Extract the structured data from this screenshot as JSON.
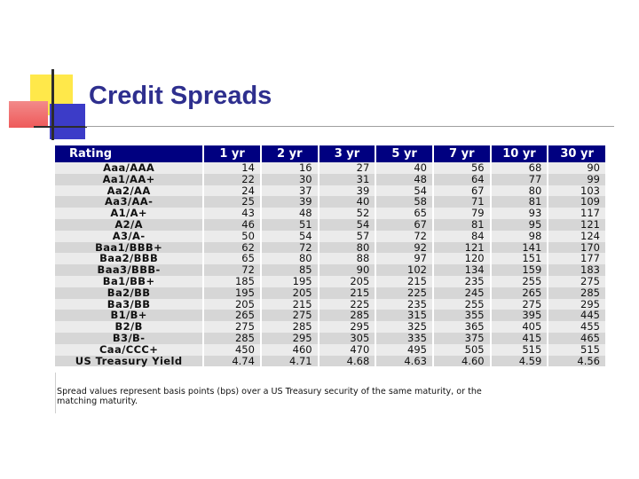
{
  "slide": {
    "title": "Credit Spreads"
  },
  "table": {
    "headers": [
      "Rating",
      "1 yr",
      "2 yr",
      "3 yr",
      "5 yr",
      "7 yr",
      "10 yr",
      "30 yr"
    ],
    "rows": [
      [
        "Aaa/AAA",
        "14",
        "16",
        "27",
        "40",
        "56",
        "68",
        "90"
      ],
      [
        "Aa1/AA+",
        "22",
        "30",
        "31",
        "48",
        "64",
        "77",
        "99"
      ],
      [
        "Aa2/AA",
        "24",
        "37",
        "39",
        "54",
        "67",
        "80",
        "103"
      ],
      [
        "Aa3/AA-",
        "25",
        "39",
        "40",
        "58",
        "71",
        "81",
        "109"
      ],
      [
        "A1/A+",
        "43",
        "48",
        "52",
        "65",
        "79",
        "93",
        "117"
      ],
      [
        "A2/A",
        "46",
        "51",
        "54",
        "67",
        "81",
        "95",
        "121"
      ],
      [
        "A3/A-",
        "50",
        "54",
        "57",
        "72",
        "84",
        "98",
        "124"
      ],
      [
        "Baa1/BBB+",
        "62",
        "72",
        "80",
        "92",
        "121",
        "141",
        "170"
      ],
      [
        "Baa2/BBB",
        "65",
        "80",
        "88",
        "97",
        "120",
        "151",
        "177"
      ],
      [
        "Baa3/BBB-",
        "72",
        "85",
        "90",
        "102",
        "134",
        "159",
        "183"
      ],
      [
        "Ba1/BB+",
        "185",
        "195",
        "205",
        "215",
        "235",
        "255",
        "275"
      ],
      [
        "Ba2/BB",
        "195",
        "205",
        "215",
        "225",
        "245",
        "265",
        "285"
      ],
      [
        "Ba3/BB",
        "205",
        "215",
        "225",
        "235",
        "255",
        "275",
        "295"
      ],
      [
        "B1/B+",
        "265",
        "275",
        "285",
        "315",
        "355",
        "395",
        "445"
      ],
      [
        "B2/B",
        "275",
        "285",
        "295",
        "325",
        "365",
        "405",
        "455"
      ],
      [
        "B3/B-",
        "285",
        "295",
        "305",
        "335",
        "375",
        "415",
        "465"
      ],
      [
        "Caa/CCC+",
        "450",
        "460",
        "470",
        "495",
        "505",
        "515",
        "515"
      ],
      [
        "US Treasury Yield",
        "4.74",
        "4.71",
        "4.68",
        "4.63",
        "4.60",
        "4.59",
        "4.56"
      ]
    ]
  },
  "footnote": "Spread values represent basis points (bps) over a US Treasury security of the same maturity, or the\nmatching maturity.",
  "colors": {
    "title": "#2e2f8e",
    "header_bg": "#000080",
    "row_light": "#ebebeb",
    "row_dark": "#d6d6d6"
  }
}
